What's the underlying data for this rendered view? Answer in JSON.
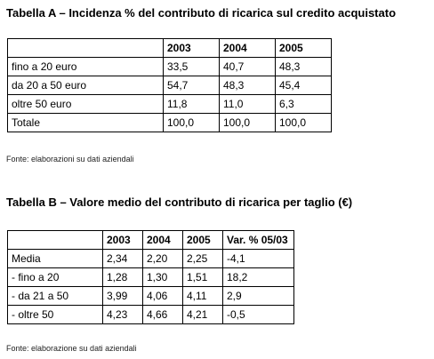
{
  "table_a": {
    "title": "Tabella A – Incidenza % del contributo di ricarica sul credito acquistato",
    "headers": [
      "",
      "2003",
      "2004",
      "2005"
    ],
    "rows": [
      [
        "fino a 20 euro",
        "33,5",
        "40,7",
        "48,3"
      ],
      [
        "da 20 a 50 euro",
        "54,7",
        "48,3",
        "45,4"
      ],
      [
        "oltre 50 euro",
        "11,8",
        "11,0",
        "6,3"
      ],
      [
        "Totale",
        "100,0",
        "100,0",
        "100,0"
      ]
    ],
    "source": "Fonte: elaborazioni su dati aziendali"
  },
  "table_b": {
    "title": "Tabella B – Valore medio del contributo di ricarica per taglio (€)",
    "headers": [
      "",
      "2003",
      "2004",
      "2005",
      "Var. % 05/03"
    ],
    "rows": [
      [
        "Media",
        "2,34",
        "2,20",
        "2,25",
        "-4,1"
      ],
      [
        "- fino a 20",
        "1,28",
        "1,30",
        "1,51",
        "18,2"
      ],
      [
        "- da 21 a 50",
        "3,99",
        "4,06",
        "4,11",
        "2,9"
      ],
      [
        "- oltre 50",
        "4,23",
        "4,66",
        "4,21",
        "-0,5"
      ]
    ],
    "source": "Fonte: elaborazione su dati aziendali"
  }
}
